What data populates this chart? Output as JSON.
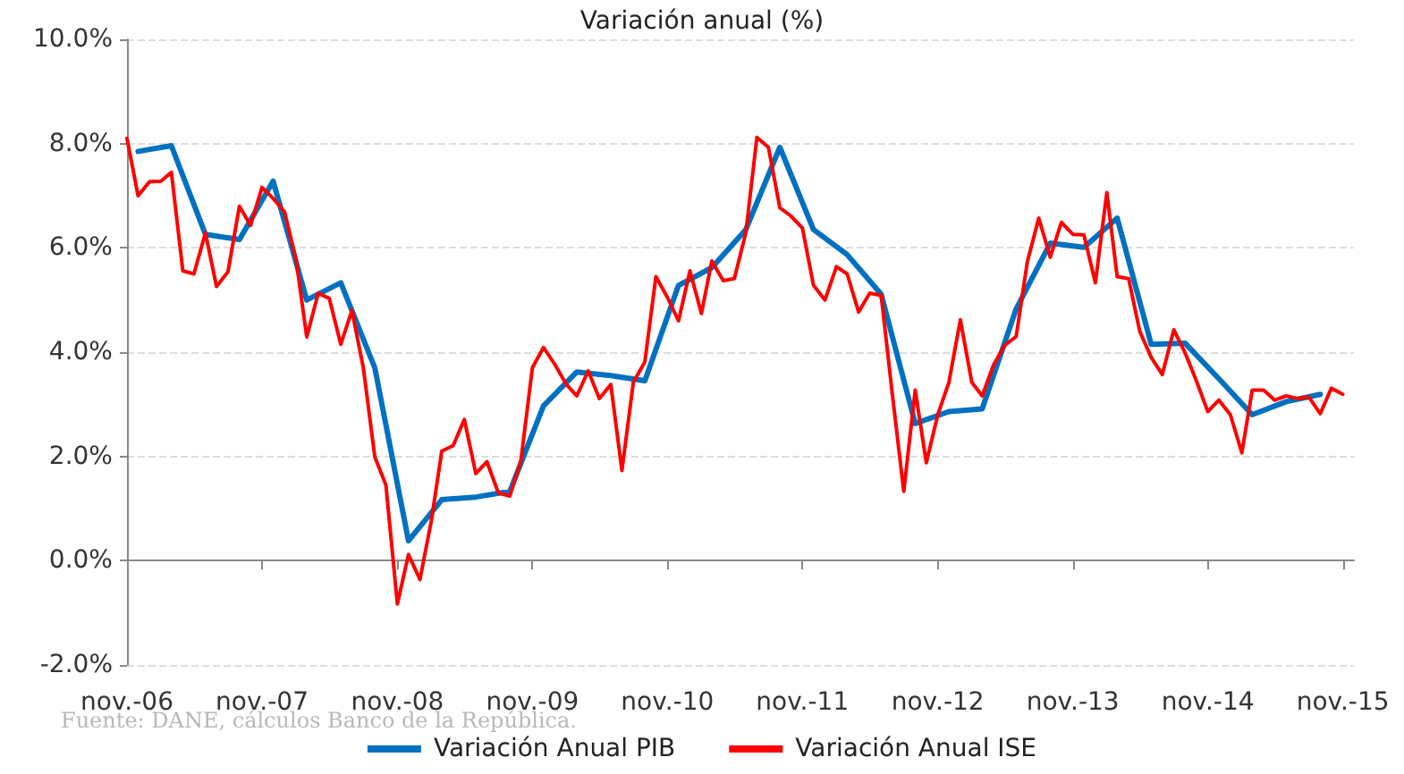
{
  "chart_data": {
    "type": "line",
    "title": "Variación anual (%)",
    "annotations": [
      "Fuente: DANE, cálculos Banco de la República."
    ],
    "xlim": [
      "2006-11",
      "2015-12"
    ],
    "xticks": [
      {
        "value": "2006-11",
        "label": "nov.-06"
      },
      {
        "value": "2007-11",
        "label": "nov.-07"
      },
      {
        "value": "2008-11",
        "label": "nov.-08"
      },
      {
        "value": "2009-11",
        "label": "nov.-09"
      },
      {
        "value": "2010-11",
        "label": "nov.-10"
      },
      {
        "value": "2011-11",
        "label": "nov.-11"
      },
      {
        "value": "2012-11",
        "label": "nov.-12"
      },
      {
        "value": "2013-11",
        "label": "nov.-13"
      },
      {
        "value": "2014-11",
        "label": "nov.-14"
      },
      {
        "value": "2015-11",
        "label": "nov.-15"
      }
    ],
    "ylim": [
      -2,
      10
    ],
    "yticks": [
      {
        "value": -2,
        "label": "-2.0%"
      },
      {
        "value": 0,
        "label": "0.0%"
      },
      {
        "value": 2,
        "label": "2.0%"
      },
      {
        "value": 4,
        "label": "4.0%"
      },
      {
        "value": 6,
        "label": "6.0%"
      },
      {
        "value": 8,
        "label": "8.0%"
      },
      {
        "value": 10,
        "label": "10.0%"
      }
    ],
    "grid": "y",
    "legend": "bottom",
    "marker": "none",
    "line_style": "solid",
    "series": [
      {
        "name": "Variación Anual PIB",
        "color": "#0070c0",
        "x": [
          "2006-12",
          "2007-03",
          "2007-06",
          "2007-09",
          "2007-12",
          "2008-03",
          "2008-06",
          "2008-09",
          "2008-12",
          "2009-03",
          "2009-06",
          "2009-09",
          "2009-12",
          "2010-03",
          "2010-06",
          "2010-09",
          "2010-12",
          "2011-03",
          "2011-06",
          "2011-09",
          "2011-12",
          "2012-03",
          "2012-06",
          "2012-09",
          "2012-12",
          "2013-03",
          "2013-06",
          "2013-09",
          "2013-12",
          "2014-03",
          "2014-06",
          "2014-09",
          "2014-12",
          "2015-03",
          "2015-06",
          "2015-09"
        ],
        "values": [
          7.85,
          7.96,
          6.26,
          6.16,
          7.28,
          5.0,
          5.33,
          3.7,
          0.38,
          1.17,
          1.22,
          1.33,
          2.97,
          3.62,
          3.55,
          3.45,
          5.28,
          5.62,
          6.35,
          7.93,
          6.35,
          5.87,
          5.11,
          2.63,
          2.86,
          2.91,
          4.83,
          6.09,
          6.01,
          6.57,
          4.15,
          4.17,
          3.49,
          2.8,
          3.05,
          3.19
        ]
      },
      {
        "name": "Variación Anual ISE",
        "color": "#ff0000",
        "x": [
          "2006-11",
          "2006-12",
          "2007-01",
          "2007-02",
          "2007-03",
          "2007-04",
          "2007-05",
          "2007-06",
          "2007-07",
          "2007-08",
          "2007-09",
          "2007-10",
          "2007-11",
          "2007-12",
          "2008-01",
          "2008-02",
          "2008-03",
          "2008-04",
          "2008-05",
          "2008-06",
          "2008-07",
          "2008-08",
          "2008-09",
          "2008-10",
          "2008-11",
          "2008-12",
          "2009-01",
          "2009-02",
          "2009-03",
          "2009-04",
          "2009-05",
          "2009-06",
          "2009-07",
          "2009-08",
          "2009-09",
          "2009-10",
          "2009-11",
          "2009-12",
          "2010-01",
          "2010-02",
          "2010-03",
          "2010-04",
          "2010-05",
          "2010-06",
          "2010-07",
          "2010-08",
          "2010-09",
          "2010-10",
          "2010-11",
          "2010-12",
          "2011-01",
          "2011-02",
          "2011-03",
          "2011-04",
          "2011-05",
          "2011-06",
          "2011-07",
          "2011-08",
          "2011-09",
          "2011-10",
          "2011-11",
          "2011-12",
          "2012-01",
          "2012-02",
          "2012-03",
          "2012-04",
          "2012-05",
          "2012-06",
          "2012-07",
          "2012-08",
          "2012-09",
          "2012-10",
          "2012-11",
          "2012-12",
          "2013-01",
          "2013-02",
          "2013-03",
          "2013-04",
          "2013-05",
          "2013-06",
          "2013-07",
          "2013-08",
          "2013-09",
          "2013-10",
          "2013-11",
          "2013-12",
          "2014-01",
          "2014-02",
          "2014-03",
          "2014-04",
          "2014-05",
          "2014-06",
          "2014-07",
          "2014-08",
          "2014-09",
          "2014-10",
          "2014-11",
          "2014-12",
          "2015-01",
          "2015-02",
          "2015-03",
          "2015-04",
          "2015-05",
          "2015-06",
          "2015-07",
          "2015-08",
          "2015-09",
          "2015-10",
          "2015-11"
        ],
        "values": [
          8.1,
          7.0,
          7.27,
          7.28,
          7.45,
          5.56,
          5.5,
          6.29,
          5.26,
          5.54,
          6.8,
          6.43,
          7.16,
          6.95,
          6.69,
          5.78,
          4.29,
          5.13,
          5.03,
          4.15,
          4.8,
          3.7,
          1.99,
          1.45,
          -0.83,
          0.12,
          -0.36,
          0.77,
          2.1,
          2.21,
          2.71,
          1.67,
          1.9,
          1.3,
          1.24,
          1.92,
          3.7,
          4.09,
          3.76,
          3.38,
          3.16,
          3.64,
          3.11,
          3.38,
          1.73,
          3.42,
          3.81,
          5.45,
          5.05,
          4.6,
          5.56,
          4.74,
          5.75,
          5.37,
          5.41,
          6.29,
          8.12,
          7.93,
          6.77,
          6.61,
          6.38,
          5.28,
          5.0,
          5.64,
          5.5,
          4.77,
          5.13,
          5.09,
          3.2,
          1.33,
          3.27,
          1.88,
          2.8,
          3.42,
          4.62,
          3.42,
          3.16,
          3.76,
          4.13,
          4.3,
          5.73,
          6.57,
          5.82,
          6.49,
          6.26,
          6.25,
          5.33,
          7.06,
          5.45,
          5.41,
          4.4,
          3.9,
          3.57,
          4.43,
          3.98,
          3.45,
          2.86,
          3.08,
          2.8,
          2.07,
          3.27,
          3.27,
          3.08,
          3.16,
          3.11,
          3.14,
          2.82,
          3.31,
          3.19
        ]
      }
    ]
  }
}
